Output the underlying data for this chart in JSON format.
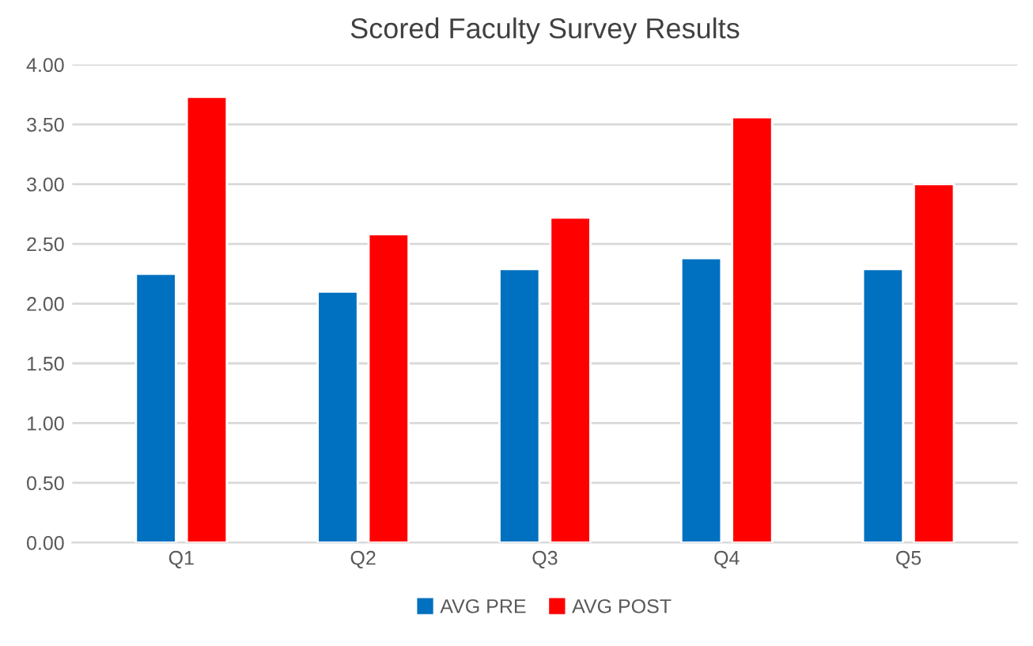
{
  "chart_data": {
    "type": "bar",
    "title": "Scored Faculty Survey Results",
    "categories": [
      "Q1",
      "Q2",
      "Q3",
      "Q4",
      "Q5"
    ],
    "series": [
      {
        "name": "AVG PRE",
        "color": "#0070c0",
        "values": [
          2.25,
          2.1,
          2.29,
          2.38,
          2.29
        ]
      },
      {
        "name": "AVG POST",
        "color": "#ff0000",
        "values": [
          3.73,
          2.58,
          2.72,
          3.56,
          3.0
        ]
      }
    ],
    "ylim": [
      0,
      4
    ],
    "yticks": [
      {
        "value": 0,
        "label": "0.00"
      },
      {
        "value": 0.5,
        "label": "0.50"
      },
      {
        "value": 1,
        "label": "1.00"
      },
      {
        "value": 1.5,
        "label": "1.50"
      },
      {
        "value": 2,
        "label": "2.00"
      },
      {
        "value": 2.5,
        "label": "2.50"
      },
      {
        "value": 3,
        "label": "3.00"
      },
      {
        "value": 3.5,
        "label": "3.50"
      },
      {
        "value": 4,
        "label": "4.00"
      }
    ],
    "grid": "y",
    "legend": "bottom"
  }
}
